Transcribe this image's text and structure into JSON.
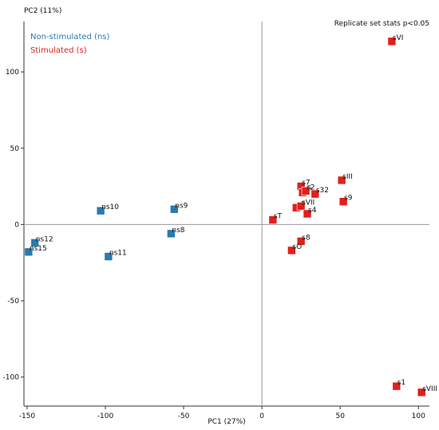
{
  "chart_data": {
    "type": "scatter",
    "xlabel": "PC1 (27%)",
    "ylabel": "PC2 (11%)",
    "annotation": "Replicate set stats p<0.05",
    "xlim": [
      -152,
      107
    ],
    "ylim": [
      -119,
      133
    ],
    "xticks": [
      -150,
      -100,
      -50,
      0,
      50,
      100
    ],
    "yticks": [
      -100,
      -50,
      0,
      50,
      100
    ],
    "legend_position": "top-left",
    "series": [
      {
        "name": "Non-stimulated (ns)",
        "color": "#2a7ab0",
        "points": [
          {
            "label": "ns10",
            "x": -103,
            "y": 9
          },
          {
            "label": "ns9",
            "x": -56,
            "y": 10
          },
          {
            "label": "ns8",
            "x": -58,
            "y": -6
          },
          {
            "label": "ns12",
            "x": -145,
            "y": -12
          },
          {
            "label": "ns15",
            "x": -149,
            "y": -18
          },
          {
            "label": "ns11",
            "x": -98,
            "y": -21
          }
        ]
      },
      {
        "name": "Stimulated (s)",
        "color": "#e0201c",
        "points": [
          {
            "label": "sVI",
            "x": 83,
            "y": 120
          },
          {
            "label": "sIII",
            "x": 51,
            "y": 29
          },
          {
            "label": "s7",
            "x": 25,
            "y": 25
          },
          {
            "label": "s6",
            "x": 26,
            "y": 21
          },
          {
            "label": "s2",
            "x": 28,
            "y": 22
          },
          {
            "label": "s32",
            "x": 34,
            "y": 20
          },
          {
            "label": "s9",
            "x": 52,
            "y": 15
          },
          {
            "label": "sII",
            "x": 22,
            "y": 11
          },
          {
            "label": "sVII",
            "x": 25,
            "y": 12
          },
          {
            "label": "s4",
            "x": 29,
            "y": 7
          },
          {
            "label": "sT",
            "x": 7,
            "y": 3
          },
          {
            "label": "s8",
            "x": 25,
            "y": -11
          },
          {
            "label": "sO",
            "x": 19,
            "y": -17
          },
          {
            "label": "s1",
            "x": 86,
            "y": -106
          },
          {
            "label": "sVIII",
            "x": 102,
            "y": -110
          }
        ]
      }
    ]
  }
}
